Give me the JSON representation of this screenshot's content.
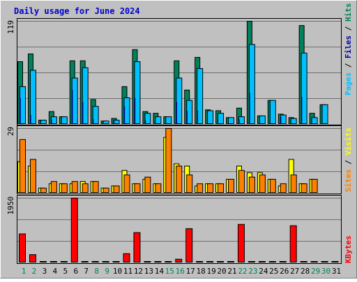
{
  "title": "Daily usage for June 2024",
  "colors": {
    "background": "#c0c0c0",
    "plot_bg": "#c0c0c0",
    "grid": "#6f6f6f",
    "title": "#0000cc",
    "hits": "#00805c",
    "files": "#00c0ff",
    "pages": "#0000a0",
    "visits": "#ffff00",
    "sites": "#ff8000",
    "kbytes": "#ff0000",
    "day_weekday": "#000000",
    "day_weekend": "#00805c"
  },
  "chart_data": [
    {
      "type": "bar",
      "name": "hits-files-pages",
      "label_parts": [
        "Pages",
        "/",
        "Files",
        "/",
        "Hits"
      ],
      "ymax_label": "119",
      "ylim": [
        0,
        119
      ],
      "categories": [
        "1",
        "2",
        "3",
        "4",
        "5",
        "6",
        "7",
        "8",
        "9",
        "10",
        "11",
        "12",
        "13",
        "14",
        "15",
        "16",
        "17",
        "18",
        "19",
        "20",
        "21",
        "22",
        "23",
        "24",
        "25",
        "26",
        "27",
        "28",
        "29",
        "30",
        "31"
      ],
      "series": [
        {
          "name": "Hits",
          "values": [
            72,
            81,
            4,
            14,
            8,
            73,
            73,
            28,
            3,
            6,
            43,
            86,
            14,
            12,
            8,
            73,
            39,
            77,
            16,
            15,
            7,
            18,
            119,
            9,
            27,
            11,
            7,
            114,
            12,
            22,
            0
          ]
        },
        {
          "name": "Files",
          "values": [
            43,
            62,
            4,
            8,
            8,
            53,
            65,
            20,
            3,
            4,
            30,
            72,
            12,
            8,
            8,
            53,
            27,
            64,
            15,
            12,
            7,
            8,
            92,
            9,
            27,
            10,
            6,
            82,
            7,
            22,
            0
          ]
        },
        {
          "name": "Pages",
          "values": [
            30,
            10,
            0,
            5,
            0,
            39,
            25,
            5,
            0,
            3,
            20,
            30,
            4,
            0,
            0,
            25,
            15,
            15,
            0,
            0,
            0,
            5,
            36,
            0,
            0,
            8,
            0,
            31,
            0,
            0,
            0
          ]
        }
      ]
    },
    {
      "type": "bar",
      "name": "visits-sites",
      "label_parts": [
        "Sites",
        "/",
        "Visits"
      ],
      "ymax_label": "29",
      "ylim": [
        0,
        29
      ],
      "categories": [
        "1",
        "2",
        "3",
        "4",
        "5",
        "6",
        "7",
        "8",
        "9",
        "10",
        "11",
        "12",
        "13",
        "14",
        "15",
        "16",
        "17",
        "18",
        "19",
        "20",
        "21",
        "22",
        "23",
        "24",
        "25",
        "26",
        "27",
        "28",
        "29",
        "30",
        "31"
      ],
      "series": [
        {
          "name": "Visits",
          "values": [
            14,
            12,
            2,
            4,
            4,
            4,
            5,
            5,
            2,
            3,
            10,
            4,
            6,
            4,
            25,
            13,
            12,
            3,
            4,
            4,
            6,
            12,
            9,
            9,
            6,
            3,
            15,
            4,
            6,
            0,
            0
          ]
        },
        {
          "name": "Sites",
          "values": [
            24,
            15,
            2,
            5,
            4,
            5,
            4,
            5,
            2,
            3,
            8,
            4,
            7,
            4,
            29,
            12,
            8,
            4,
            4,
            4,
            6,
            10,
            7,
            8,
            6,
            4,
            8,
            4,
            6,
            0,
            0
          ]
        }
      ]
    },
    {
      "type": "bar",
      "name": "kbytes",
      "label_parts": [
        "KBytes"
      ],
      "ymax_label": "1950",
      "ylim": [
        0,
        1950
      ],
      "categories": [
        "1",
        "2",
        "3",
        "4",
        "5",
        "6",
        "7",
        "8",
        "9",
        "10",
        "11",
        "12",
        "13",
        "14",
        "15",
        "16",
        "17",
        "18",
        "19",
        "20",
        "21",
        "22",
        "23",
        "24",
        "25",
        "26",
        "27",
        "28",
        "29",
        "30",
        "31"
      ],
      "series": [
        {
          "name": "KBytes",
          "values": [
            860,
            230,
            15,
            15,
            15,
            1950,
            15,
            15,
            15,
            15,
            260,
            900,
            15,
            15,
            15,
            90,
            1020,
            15,
            15,
            15,
            15,
            1150,
            15,
            15,
            15,
            15,
            1110,
            15,
            15,
            15,
            15
          ]
        }
      ]
    }
  ],
  "days": [
    {
      "label": "1",
      "weekend": true
    },
    {
      "label": "2",
      "weekend": true
    },
    {
      "label": "3",
      "weekend": false
    },
    {
      "label": "4",
      "weekend": false
    },
    {
      "label": "5",
      "weekend": false
    },
    {
      "label": "6",
      "weekend": false
    },
    {
      "label": "7",
      "weekend": false
    },
    {
      "label": "8",
      "weekend": true
    },
    {
      "label": "9",
      "weekend": true
    },
    {
      "label": "10",
      "weekend": false
    },
    {
      "label": "11",
      "weekend": false
    },
    {
      "label": "12",
      "weekend": false
    },
    {
      "label": "13",
      "weekend": false
    },
    {
      "label": "14",
      "weekend": false
    },
    {
      "label": "15",
      "weekend": true
    },
    {
      "label": "16",
      "weekend": true
    },
    {
      "label": "17",
      "weekend": false
    },
    {
      "label": "18",
      "weekend": false
    },
    {
      "label": "19",
      "weekend": false
    },
    {
      "label": "20",
      "weekend": false
    },
    {
      "label": "21",
      "weekend": false
    },
    {
      "label": "22",
      "weekend": true
    },
    {
      "label": "23",
      "weekend": true
    },
    {
      "label": "24",
      "weekend": false
    },
    {
      "label": "25",
      "weekend": false
    },
    {
      "label": "26",
      "weekend": false
    },
    {
      "label": "27",
      "weekend": false
    },
    {
      "label": "28",
      "weekend": false
    },
    {
      "label": "29",
      "weekend": true
    },
    {
      "label": "30",
      "weekend": true
    },
    {
      "label": "31",
      "weekend": false
    }
  ]
}
